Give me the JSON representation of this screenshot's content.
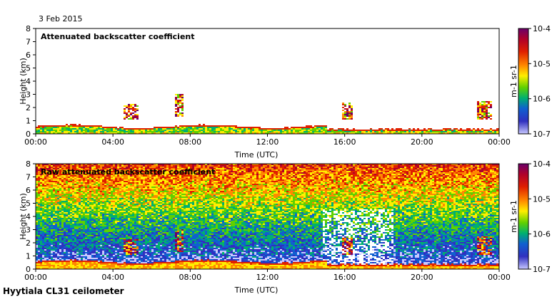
{
  "date": "3 Feb 2015",
  "station": "Hyytiala CL31 ceilometer",
  "colorbar": {
    "ticks": [
      "10^-4",
      "10^-5",
      "10^-6",
      "10^-7"
    ],
    "unit_label": "m-1 sr-1",
    "colors": [
      "#6a006a",
      "#b0002a",
      "#e02000",
      "#ff8800",
      "#ffee00",
      "#60d000",
      "#00b070",
      "#1060d0",
      "#3030c0",
      "#c8c8ff"
    ]
  },
  "chart_data": [
    {
      "type": "heatmap",
      "title": "Attenuated backscatter coefficient",
      "xlabel": "Time (UTC)",
      "ylabel": "Height (km)",
      "xticks": [
        "00:00",
        "04:00",
        "08:00",
        "12:00",
        "16:00",
        "20:00",
        "00:00"
      ],
      "yticks": [
        "0",
        "1",
        "2",
        "3",
        "4",
        "5",
        "6",
        "7",
        "8"
      ],
      "xlim_hours": [
        0,
        24
      ],
      "ylim_km": [
        0,
        8
      ],
      "features": [
        {
          "start_h": 0,
          "end_h": 15,
          "top_km": 0.8,
          "desc": "boundary layer aerosol"
        },
        {
          "start_h": 4.5,
          "end_h": 5.3,
          "top_km": 2.3,
          "desc": "elevated layer"
        },
        {
          "start_h": 7.2,
          "end_h": 7.6,
          "top_km": 3.0,
          "desc": "cloud"
        },
        {
          "start_h": 15.8,
          "end_h": 16.4,
          "top_km": 2.4,
          "desc": "cloud"
        },
        {
          "start_h": 22.8,
          "end_h": 23.6,
          "top_km": 2.5,
          "desc": "cloud"
        }
      ]
    },
    {
      "type": "heatmap",
      "title": "Raw attenuated backscatter coefficient",
      "xlabel": "Time (UTC)",
      "ylabel": "Height (km)",
      "xticks": [
        "00:00",
        "04:00",
        "08:00",
        "12:00",
        "16:00",
        "20:00",
        "00:00"
      ],
      "yticks": [
        "0",
        "1",
        "2",
        "3",
        "4",
        "5",
        "6",
        "7",
        "8"
      ],
      "xlim_hours": [
        0,
        24
      ],
      "ylim_km": [
        0,
        8
      ],
      "features": [
        {
          "start_h": 0,
          "end_h": 24,
          "top_km": 8,
          "desc": "noise increasing with height"
        },
        {
          "start_h": 14.8,
          "end_h": 18.5,
          "top_km": 4.5,
          "desc": "low-signal gaps"
        }
      ]
    }
  ]
}
